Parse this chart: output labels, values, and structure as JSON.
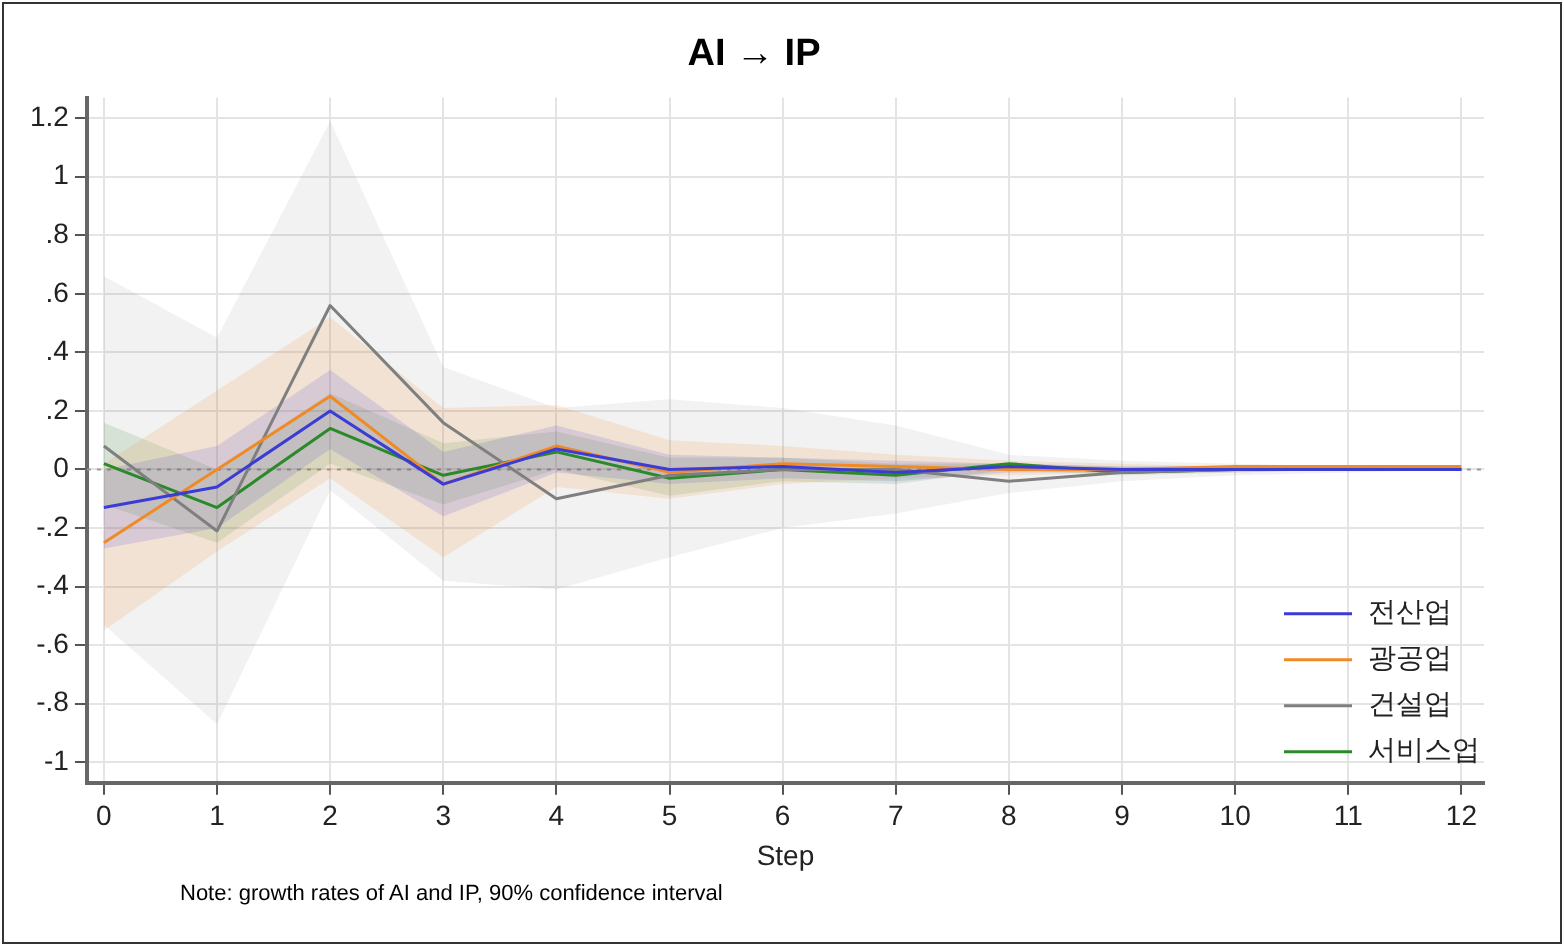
{
  "chart_data": {
    "type": "line",
    "title": "AI → IP",
    "xlabel": "Step",
    "x": [
      0,
      1,
      2,
      3,
      4,
      5,
      6,
      7,
      8,
      9,
      10,
      11,
      12
    ],
    "xlim": [
      -0.15,
      12.2
    ],
    "xticks": [
      0,
      1,
      2,
      3,
      4,
      5,
      6,
      7,
      8,
      9,
      10,
      11,
      12
    ],
    "ylim": [
      -1.07,
      1.27
    ],
    "yticks": [
      {
        "value": -1,
        "label": "-1"
      },
      {
        "value": -0.8,
        "label": "-.8"
      },
      {
        "value": -0.6,
        "label": "-.6"
      },
      {
        "value": -0.4,
        "label": "-.4"
      },
      {
        "value": -0.2,
        "label": "-.2"
      },
      0,
      {
        "value": 0.2,
        "label": ".2"
      },
      {
        "value": 0.4,
        "label": ".4"
      },
      {
        "value": 0.6,
        "label": ".6"
      },
      {
        "value": 0.8,
        "label": ".8"
      },
      1,
      1.2
    ],
    "series": [
      {
        "name": "전산업",
        "color": "#3b3bd6",
        "values": [
          -0.13,
          -0.06,
          0.2,
          -0.05,
          0.07,
          0.0,
          0.01,
          -0.01,
          0.01,
          0,
          0,
          0,
          0
        ],
        "upper": [
          0.0,
          0.08,
          0.34,
          0.06,
          0.15,
          0.05,
          0.04,
          0.03,
          0.02,
          0.01,
          0.01,
          0,
          0
        ],
        "lower": [
          -0.27,
          -0.2,
          0.07,
          -0.16,
          -0.01,
          -0.05,
          -0.03,
          -0.04,
          -0.01,
          -0.01,
          0,
          0,
          0
        ]
      },
      {
        "name": "광공업",
        "color": "#f08a24",
        "values": [
          -0.25,
          0.0,
          0.25,
          -0.05,
          0.08,
          -0.01,
          0.02,
          0.01,
          0.0,
          0,
          0.01,
          0.01,
          0.01
        ],
        "upper": [
          0.02,
          0.27,
          0.52,
          0.21,
          0.22,
          0.1,
          0.08,
          0.05,
          0.03,
          0.02,
          0.01,
          0.01,
          0
        ],
        "lower": [
          -0.55,
          -0.28,
          -0.03,
          -0.3,
          -0.06,
          -0.1,
          -0.05,
          -0.03,
          -0.02,
          -0.01,
          -0.01,
          0,
          0
        ]
      },
      {
        "name": "건설업",
        "color": "#7f7f7f",
        "values": [
          0.08,
          -0.21,
          0.56,
          0.16,
          -0.1,
          -0.02,
          0.0,
          0.0,
          -0.04,
          -0.01,
          0.0,
          0,
          0
        ],
        "upper": [
          0.66,
          0.45,
          1.19,
          0.35,
          0.21,
          0.24,
          0.21,
          0.15,
          0.05,
          0.03,
          0.02,
          0.01,
          0
        ],
        "lower": [
          -0.53,
          -0.87,
          -0.07,
          -0.38,
          -0.41,
          -0.3,
          -0.2,
          -0.15,
          -0.08,
          -0.04,
          -0.02,
          -0.01,
          0
        ]
      },
      {
        "name": "서비스업",
        "color": "#2a8a2a",
        "values": [
          0.02,
          -0.13,
          0.14,
          -0.02,
          0.06,
          -0.03,
          0.0,
          -0.02,
          0.02,
          -0.01,
          0.0,
          0,
          0
        ],
        "upper": [
          0.16,
          0.0,
          0.26,
          0.09,
          0.13,
          0.04,
          0.04,
          0.02,
          0.02,
          0.01,
          0.01,
          0,
          0
        ],
        "lower": [
          -0.12,
          -0.25,
          0.02,
          -0.12,
          0.0,
          -0.09,
          -0.04,
          -0.05,
          0.0,
          -0.02,
          -0.01,
          0,
          0
        ]
      }
    ],
    "ref_lines": [
      {
        "axis": "y",
        "value": 0,
        "color": "#999999",
        "line_style": "dotted"
      }
    ],
    "grid": true,
    "legend": "bottom right",
    "marker": "none",
    "line_style": "solid",
    "annotations": [
      "Note: growth rates of AI and IP, 90% confidence interval"
    ]
  }
}
